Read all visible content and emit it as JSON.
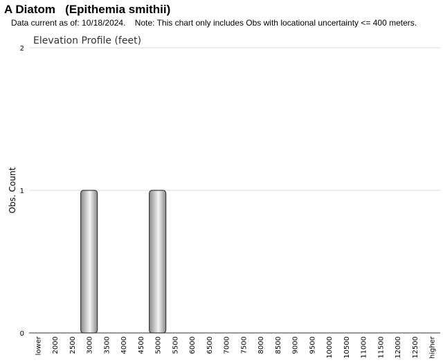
{
  "header": {
    "title": "A Diatom   (Epithemia smithii)",
    "note": "Data current as of: 10/18/2024.    Note: This chart only includes Obs with locational uncertainty <= 400 meters."
  },
  "chart_data": {
    "type": "bar",
    "title": "Elevation Profile (feet)",
    "xlabel": "",
    "ylabel": "Obs. Count",
    "ylim": [
      0,
      2
    ],
    "yticks": [
      0,
      1,
      2
    ],
    "grid": true,
    "categories": [
      "lower",
      "2000",
      "2500",
      "3000",
      "3500",
      "4000",
      "4500",
      "5000",
      "5500",
      "6000",
      "6500",
      "7000",
      "7500",
      "8000",
      "8500",
      "9000",
      "9500",
      "10000",
      "10500",
      "11000",
      "11500",
      "12000",
      "12500",
      "higher"
    ],
    "values": [
      0,
      0,
      0,
      1,
      0,
      0,
      0,
      1,
      0,
      0,
      0,
      0,
      0,
      0,
      0,
      0,
      0,
      0,
      0,
      0,
      0,
      0,
      0,
      0
    ],
    "colors": {
      "bar_light": "#f4f4f4",
      "bar_dark": "#8a8a8a",
      "bar_stroke": "#3a3a3a",
      "grid": "#d9d9d9",
      "axis": "#333333"
    }
  }
}
